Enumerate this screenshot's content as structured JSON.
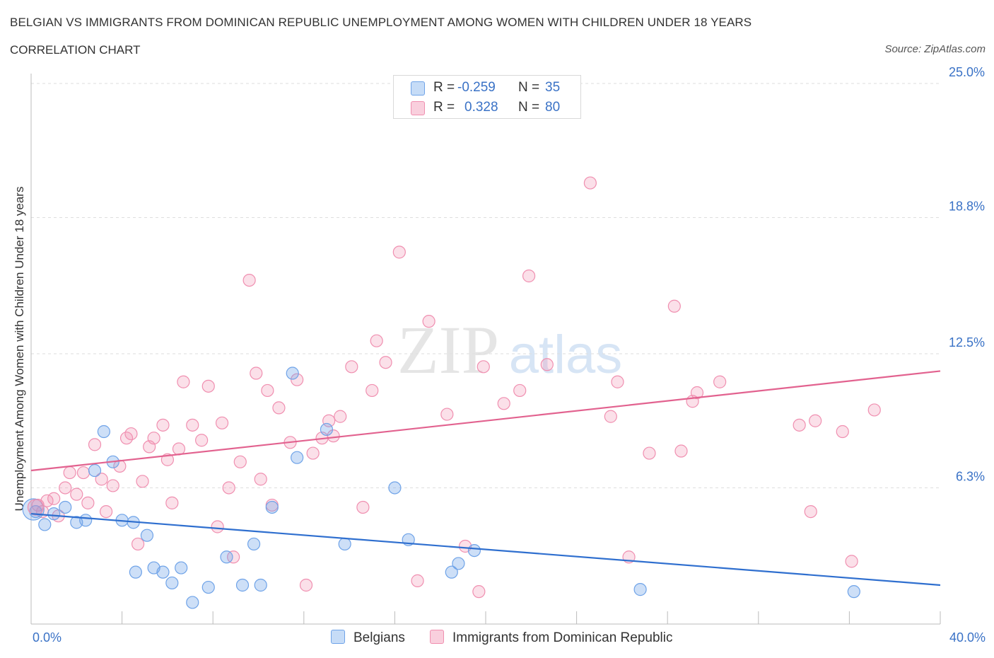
{
  "header": {
    "title": "BELGIAN VS IMMIGRANTS FROM DOMINICAN REPUBLIC UNEMPLOYMENT AMONG WOMEN WITH CHILDREN UNDER 18 YEARS",
    "subtitle": "CORRELATION CHART",
    "source": "Source: ZipAtlas.com"
  },
  "watermark": {
    "zip": "ZIP",
    "atlas": "atlas"
  },
  "legend": {
    "rows": [
      {
        "r_label": "R =",
        "r_value": "-0.259",
        "n_label": "N =",
        "n_value": "35",
        "color": "#6fa3e8"
      },
      {
        "r_label": "R =",
        "r_value": "0.328",
        "n_label": "N =",
        "n_value": "80",
        "color": "#f08fb0"
      }
    ]
  },
  "bottom_legend": {
    "belgians": "Belgians",
    "dominican": "Immigrants from Dominican Republic"
  },
  "x_labels": {
    "min": "0.0%",
    "max": "40.0%"
  },
  "chart_data": {
    "type": "scatter",
    "title": "BELGIAN VS IMMIGRANTS FROM DOMINICAN REPUBLIC UNEMPLOYMENT AMONG WOMEN WITH CHILDREN UNDER 18 YEARS",
    "subtitle": "CORRELATION CHART",
    "xlabel": "",
    "ylabel": "Unemployment Among Women with Children Under 18 years",
    "xlim": [
      0,
      40
    ],
    "ylim": [
      0,
      25
    ],
    "y_ticks": [
      6.3,
      12.5,
      18.8,
      25.0
    ],
    "y_tick_labels": [
      "6.3%",
      "12.5%",
      "18.8%",
      "25.0%"
    ],
    "x_tick_labels": [
      "0.0%",
      "40.0%"
    ],
    "grid": true,
    "legend_position": "top-center",
    "series": [
      {
        "name": "Belgians",
        "color": "#6fa3e8",
        "r": -0.259,
        "n": 35,
        "trend": {
          "x": [
            0,
            40
          ],
          "y": [
            5.1,
            1.8
          ]
        },
        "points": [
          [
            0.2,
            5.2
          ],
          [
            0.6,
            4.6
          ],
          [
            1.0,
            5.1
          ],
          [
            1.5,
            5.4
          ],
          [
            2.0,
            4.7
          ],
          [
            2.4,
            4.8
          ],
          [
            2.8,
            7.1
          ],
          [
            3.2,
            8.9
          ],
          [
            3.6,
            7.5
          ],
          [
            4.0,
            4.8
          ],
          [
            4.5,
            4.7
          ],
          [
            4.6,
            2.4
          ],
          [
            5.1,
            4.1
          ],
          [
            5.4,
            2.6
          ],
          [
            5.8,
            2.4
          ],
          [
            6.2,
            1.9
          ],
          [
            6.6,
            2.6
          ],
          [
            7.1,
            1.0
          ],
          [
            7.8,
            1.7
          ],
          [
            8.6,
            3.1
          ],
          [
            9.3,
            1.8
          ],
          [
            9.8,
            3.7
          ],
          [
            10.1,
            1.8
          ],
          [
            10.6,
            5.4
          ],
          [
            11.5,
            11.6
          ],
          [
            11.7,
            7.7
          ],
          [
            13.0,
            9.0
          ],
          [
            13.8,
            3.7
          ],
          [
            16.0,
            6.3
          ],
          [
            16.6,
            3.9
          ],
          [
            18.5,
            2.4
          ],
          [
            18.8,
            2.8
          ],
          [
            19.5,
            3.4
          ],
          [
            26.8,
            1.6
          ],
          [
            36.2,
            1.5
          ]
        ]
      },
      {
        "name": "Immigrants from Dominican Republic",
        "color": "#f08fb0",
        "r": 0.328,
        "n": 80,
        "trend": {
          "x": [
            0,
            40
          ],
          "y": [
            7.1,
            11.7
          ]
        },
        "points": [
          [
            0.3,
            5.5
          ],
          [
            0.5,
            5.2
          ],
          [
            0.7,
            5.7
          ],
          [
            1.0,
            5.8
          ],
          [
            1.2,
            5.0
          ],
          [
            1.5,
            6.3
          ],
          [
            1.7,
            7.0
          ],
          [
            2.0,
            6.0
          ],
          [
            2.3,
            7.0
          ],
          [
            2.5,
            5.6
          ],
          [
            2.8,
            8.3
          ],
          [
            3.1,
            6.7
          ],
          [
            3.3,
            5.2
          ],
          [
            3.6,
            6.4
          ],
          [
            3.9,
            7.3
          ],
          [
            4.2,
            8.6
          ],
          [
            4.4,
            8.8
          ],
          [
            4.7,
            3.7
          ],
          [
            4.9,
            6.6
          ],
          [
            5.2,
            8.2
          ],
          [
            5.4,
            8.6
          ],
          [
            5.8,
            9.2
          ],
          [
            6.0,
            7.6
          ],
          [
            6.2,
            5.6
          ],
          [
            6.5,
            8.1
          ],
          [
            6.7,
            11.2
          ],
          [
            7.1,
            9.2
          ],
          [
            7.5,
            8.5
          ],
          [
            7.8,
            11.0
          ],
          [
            8.2,
            4.5
          ],
          [
            8.4,
            9.3
          ],
          [
            8.7,
            6.3
          ],
          [
            8.9,
            3.1
          ],
          [
            9.2,
            7.5
          ],
          [
            9.6,
            15.9
          ],
          [
            9.9,
            11.6
          ],
          [
            10.1,
            6.7
          ],
          [
            10.4,
            10.8
          ],
          [
            10.6,
            5.5
          ],
          [
            10.9,
            10.0
          ],
          [
            11.4,
            8.4
          ],
          [
            11.7,
            11.3
          ],
          [
            12.1,
            1.8
          ],
          [
            12.4,
            7.9
          ],
          [
            12.8,
            8.6
          ],
          [
            13.1,
            9.4
          ],
          [
            13.3,
            8.7
          ],
          [
            13.6,
            9.6
          ],
          [
            14.1,
            11.9
          ],
          [
            14.6,
            5.4
          ],
          [
            15.0,
            10.8
          ],
          [
            15.2,
            13.1
          ],
          [
            15.6,
            12.1
          ],
          [
            16.2,
            17.2
          ],
          [
            17.0,
            2.0
          ],
          [
            17.5,
            14.0
          ],
          [
            18.3,
            9.7
          ],
          [
            19.1,
            3.6
          ],
          [
            19.7,
            1.5
          ],
          [
            19.9,
            11.9
          ],
          [
            20.8,
            10.2
          ],
          [
            21.5,
            10.8
          ],
          [
            21.9,
            16.1
          ],
          [
            22.7,
            12.0
          ],
          [
            24.6,
            20.4
          ],
          [
            25.5,
            9.6
          ],
          [
            25.8,
            11.2
          ],
          [
            26.3,
            3.1
          ],
          [
            27.2,
            7.9
          ],
          [
            28.3,
            14.7
          ],
          [
            28.6,
            8.0
          ],
          [
            29.1,
            10.3
          ],
          [
            29.3,
            10.7
          ],
          [
            30.3,
            11.2
          ],
          [
            33.8,
            9.2
          ],
          [
            34.3,
            5.2
          ],
          [
            34.5,
            9.4
          ],
          [
            35.7,
            8.9
          ],
          [
            36.1,
            2.9
          ],
          [
            37.1,
            9.9
          ]
        ]
      }
    ]
  }
}
